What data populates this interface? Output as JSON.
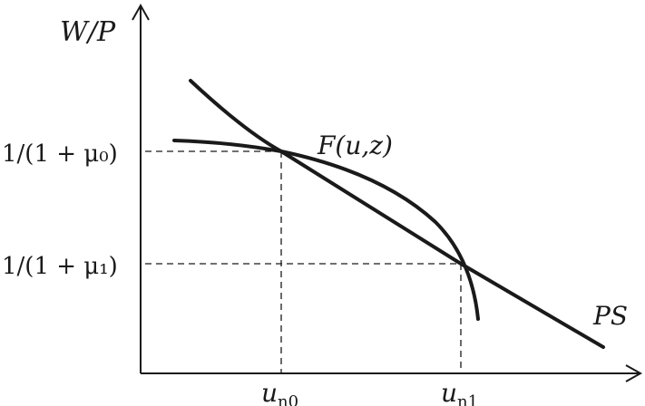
{
  "axes": {
    "y_label": "W/P",
    "x_label": ""
  },
  "curves": {
    "wage_setting": {
      "label_base": "F(u,z)"
    },
    "price_setting": {
      "label_base": "PS"
    }
  },
  "y_ticks": [
    {
      "text": "1/(1 + μ₀)"
    },
    {
      "text": "1/(1 + μ₁)"
    }
  ],
  "x_ticks": [
    {
      "base": "u",
      "sub": "n0"
    },
    {
      "base": "u",
      "sub": "n1"
    }
  ],
  "colors": {
    "stroke": "#1a1a1a",
    "background": "#ffffff"
  }
}
